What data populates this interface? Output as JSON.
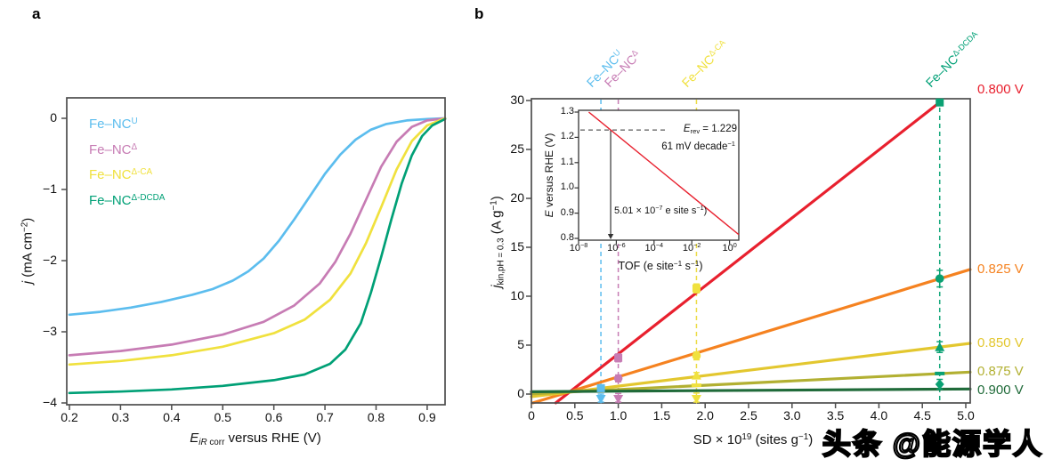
{
  "panel_a": {
    "label": "a",
    "ylabel_html": "<i>j</i> (mA cm<sup>−2</sup>)",
    "xlabel_html": "<i>E</i><sub><i>iR</i> corr</sub> versus RHE (V)",
    "legend": [
      {
        "label_html": "Fe–NC<sup>U</sup>",
        "color": "#5cbdee"
      },
      {
        "label_html": "Fe–NC<sup>Δ</sup>",
        "color": "#c77cb4"
      },
      {
        "label_html": "Fe–NC<sup>Δ-CA</sup>",
        "color": "#f0e13e"
      },
      {
        "label_html": "Fe–NC<sup>Δ-DCDA</sup>",
        "color": "#00a076"
      }
    ]
  },
  "panel_b": {
    "label": "b",
    "ylabel_html": "<i>j</i><sub>kin,pH = 0.3</sub> (A g<sup>−1</sup>)",
    "xlabel_html": "SD × 10<sup>19</sup> (sites g<sup>−1</sup>)",
    "catalyst_labels": [
      {
        "label_html": "Fe–NC<sup>U</sup>",
        "color": "#5cbdee",
        "sd": 0.8
      },
      {
        "label_html": "Fe–NC<sup>Δ</sup>",
        "color": "#c77cb4",
        "sd": 1.0
      },
      {
        "label_html": "Fe–NC<sup>Δ-CA</sup>",
        "color": "#f0e13e",
        "sd": 1.9
      },
      {
        "label_html": "Fe–NC<sup>Δ-DCDA</sup>",
        "color": "#00a076",
        "sd": 4.7
      }
    ],
    "potential_labels": [
      {
        "text": "0.800 V",
        "color": "#e8202e"
      },
      {
        "text": "0.825 V",
        "color": "#f58220"
      },
      {
        "text": "0.850 V",
        "color": "#e3c72f"
      },
      {
        "text": "0.875 V",
        "color": "#b2b032"
      },
      {
        "text": "0.900 V",
        "color": "#206b3a"
      }
    ],
    "inset": {
      "ylabel_html": "<i>E</i> versus RHE (V)",
      "xlabel_html": "TOF (e site<sup>−1</sup> s<sup>−1</sup>)",
      "erev_html": "<i>E</i><sub>rev</sub> = 1.229",
      "slope_html": "61 mV decade<sup>−1</sup>",
      "tof_html": "5.01 × 10<sup>−7</sup> e site s<sup>−1</sup>)"
    }
  },
  "watermark": "头条 @能源学人",
  "chart_data": [
    {
      "type": "line",
      "panel": "a",
      "xlabel": "E_iR corr versus RHE (V)",
      "ylabel": "j (mA cm−2)",
      "xlim": [
        0.195,
        0.935
      ],
      "ylim": [
        -4.03,
        0.29
      ],
      "xticks": [
        0.2,
        0.3,
        0.4,
        0.5,
        0.6,
        0.7,
        0.8,
        0.9
      ],
      "xtick_labels": [
        "0.2",
        "0.3",
        "0.4",
        "0.5",
        "0.6",
        "0.7",
        "0.8",
        "0.9"
      ],
      "yticks": [
        0,
        -1,
        -2,
        -3,
        -4
      ],
      "ytick_labels": [
        "0",
        "−1",
        "−2",
        "−3",
        "−4"
      ],
      "series": [
        {
          "name": "Fe–NC U",
          "color": "#5cbdee",
          "points": [
            [
              0.2,
              -2.76
            ],
            [
              0.26,
              -2.72
            ],
            [
              0.32,
              -2.66
            ],
            [
              0.38,
              -2.58
            ],
            [
              0.44,
              -2.48
            ],
            [
              0.48,
              -2.4
            ],
            [
              0.52,
              -2.28
            ],
            [
              0.55,
              -2.15
            ],
            [
              0.58,
              -1.97
            ],
            [
              0.61,
              -1.72
            ],
            [
              0.64,
              -1.42
            ],
            [
              0.67,
              -1.1
            ],
            [
              0.7,
              -0.78
            ],
            [
              0.73,
              -0.51
            ],
            [
              0.76,
              -0.3
            ],
            [
              0.79,
              -0.16
            ],
            [
              0.82,
              -0.08
            ],
            [
              0.86,
              -0.03
            ],
            [
              0.9,
              -0.01
            ],
            [
              0.935,
              0
            ]
          ]
        },
        {
          "name": "Fe–NC Δ",
          "color": "#c77cb4",
          "points": [
            [
              0.2,
              -3.33
            ],
            [
              0.3,
              -3.27
            ],
            [
              0.4,
              -3.18
            ],
            [
              0.5,
              -3.04
            ],
            [
              0.58,
              -2.86
            ],
            [
              0.64,
              -2.63
            ],
            [
              0.69,
              -2.32
            ],
            [
              0.72,
              -2.02
            ],
            [
              0.75,
              -1.62
            ],
            [
              0.78,
              -1.15
            ],
            [
              0.81,
              -0.68
            ],
            [
              0.84,
              -0.33
            ],
            [
              0.87,
              -0.12
            ],
            [
              0.9,
              -0.03
            ],
            [
              0.935,
              0
            ]
          ]
        },
        {
          "name": "Fe–NC Δ-CA",
          "color": "#f0e13e",
          "points": [
            [
              0.2,
              -3.46
            ],
            [
              0.3,
              -3.41
            ],
            [
              0.4,
              -3.33
            ],
            [
              0.5,
              -3.21
            ],
            [
              0.6,
              -3.02
            ],
            [
              0.66,
              -2.83
            ],
            [
              0.71,
              -2.55
            ],
            [
              0.75,
              -2.18
            ],
            [
              0.78,
              -1.76
            ],
            [
              0.81,
              -1.25
            ],
            [
              0.84,
              -0.72
            ],
            [
              0.87,
              -0.32
            ],
            [
              0.9,
              -0.1
            ],
            [
              0.935,
              0
            ]
          ]
        },
        {
          "name": "Fe–NC Δ-DCDA",
          "color": "#00a076",
          "points": [
            [
              0.2,
              -3.86
            ],
            [
              0.3,
              -3.84
            ],
            [
              0.4,
              -3.81
            ],
            [
              0.5,
              -3.76
            ],
            [
              0.6,
              -3.68
            ],
            [
              0.66,
              -3.6
            ],
            [
              0.71,
              -3.45
            ],
            [
              0.74,
              -3.25
            ],
            [
              0.77,
              -2.88
            ],
            [
              0.79,
              -2.45
            ],
            [
              0.81,
              -1.95
            ],
            [
              0.83,
              -1.42
            ],
            [
              0.85,
              -0.92
            ],
            [
              0.87,
              -0.52
            ],
            [
              0.89,
              -0.25
            ],
            [
              0.91,
              -0.1
            ],
            [
              0.935,
              -0.01
            ]
          ]
        }
      ]
    },
    {
      "type": "scatter",
      "panel": "b",
      "xlabel": "SD × 10^19 (sites g−1)",
      "ylabel": "j_kin,pH=0.3 (A g−1)",
      "xlim": [
        0,
        5.05
      ],
      "ylim": [
        -0.9,
        30.2
      ],
      "xticks": [
        0,
        0.5,
        1.0,
        1.5,
        2.0,
        2.5,
        3.0,
        3.5,
        4.0,
        4.5,
        5.0
      ],
      "xtick_labels": [
        "0",
        "0.5",
        "1.0",
        "1.5",
        "2.0",
        "2.5",
        "3.0",
        "3.5",
        "4.0",
        "4.5",
        "5.0"
      ],
      "yticks": [
        0,
        5,
        10,
        15,
        20,
        25,
        30
      ],
      "ytick_labels": [
        "0",
        "5",
        "10",
        "15",
        "20",
        "25",
        "30"
      ],
      "lines": [
        {
          "potential": "0.800 V",
          "color": "#e8202e",
          "slope": 6.95,
          "intercept": -2.85,
          "x_end": 4.7,
          "width": 3.2
        },
        {
          "potential": "0.825 V",
          "color": "#f58220",
          "slope": 2.71,
          "intercept": -0.95,
          "x_end": 5.05,
          "width": 3.2
        },
        {
          "potential": "0.850 V",
          "color": "#e3c72f",
          "slope": 1.08,
          "intercept": -0.27,
          "x_end": 5.05,
          "width": 3.2
        },
        {
          "potential": "0.875 V",
          "color": "#b2b032",
          "slope": 0.44,
          "intercept": 0.02,
          "x_end": 5.05,
          "width": 3.2
        },
        {
          "potential": "0.900 V",
          "color": "#206b3a",
          "slope": 0.055,
          "intercept": 0.24,
          "x_end": 5.05,
          "width": 3.2
        }
      ],
      "guides": [
        {
          "catalyst": "Fe–NC U",
          "color": "#5cbdee",
          "sd": 0.8
        },
        {
          "catalyst": "Fe–NC Δ",
          "color": "#c77cb4",
          "sd": 1.0
        },
        {
          "catalyst": "Fe–NC Δ-CA",
          "color": "#ecdc45",
          "sd": 1.9
        },
        {
          "catalyst": "Fe–NC Δ-DCDA",
          "color": "#17a97c",
          "sd": 4.7
        }
      ],
      "markers": [
        {
          "catalyst": "Fe–NC U",
          "color": "#5cbdee",
          "sd": 0.8,
          "shape": "square",
          "value": 0.6,
          "err": 0.3
        },
        {
          "catalyst": "Fe–NC U",
          "color": "#5cbdee",
          "sd": 0.8,
          "shape": "triangle-down",
          "value": -0.5,
          "err": 0.5
        },
        {
          "catalyst": "Fe–NC Δ",
          "color": "#c77cb4",
          "sd": 1.0,
          "shape": "square",
          "value": 3.7,
          "err": 0.4
        },
        {
          "catalyst": "Fe–NC Δ",
          "color": "#c77cb4",
          "sd": 1.0,
          "shape": "circle",
          "value": 1.6,
          "err": 0.35
        },
        {
          "catalyst": "Fe–NC Δ",
          "color": "#c77cb4",
          "sd": 1.0,
          "shape": "triangle-down",
          "value": -0.5,
          "err": 0.55
        },
        {
          "catalyst": "Fe–NC Δ-CA",
          "color": "#f0e13e",
          "sd": 1.9,
          "shape": "square",
          "value": 10.8,
          "err": 0.45
        },
        {
          "catalyst": "Fe–NC Δ-CA",
          "color": "#f0e13e",
          "sd": 1.9,
          "shape": "circle",
          "value": 3.9,
          "err": 0.4
        },
        {
          "catalyst": "Fe–NC Δ-CA",
          "color": "#f0e13e",
          "sd": 1.9,
          "shape": "triangle-up",
          "value": 1.9,
          "err": 0.3
        },
        {
          "catalyst": "Fe–NC Δ-CA",
          "color": "#f0e13e",
          "sd": 1.9,
          "shape": "bar",
          "value": 0.9,
          "err": 0
        },
        {
          "catalyst": "Fe–NC Δ-CA",
          "color": "#f0e13e",
          "sd": 1.9,
          "shape": "triangle-down",
          "value": -0.5,
          "err": 0.6
        },
        {
          "catalyst": "Fe–NC Δ-DCDA",
          "color": "#0aa173",
          "sd": 4.7,
          "shape": "square",
          "value": 29.8,
          "err": 0.3
        },
        {
          "catalyst": "Fe–NC Δ-DCDA",
          "color": "#0aa173",
          "sd": 4.7,
          "shape": "circle",
          "value": 11.8,
          "err": 0.85
        },
        {
          "catalyst": "Fe–NC Δ-DCDA",
          "color": "#0aa173",
          "sd": 4.7,
          "shape": "triangle-up",
          "value": 4.8,
          "err": 0.55
        },
        {
          "catalyst": "Fe–NC Δ-DCDA",
          "color": "#0aa173",
          "sd": 4.7,
          "shape": "bar",
          "value": 2.1,
          "err": 0
        },
        {
          "catalyst": "Fe–NC Δ-DCDA",
          "color": "#0aa173",
          "sd": 4.7,
          "shape": "diamond",
          "value": 1.0,
          "err": 0.5
        }
      ]
    },
    {
      "type": "line",
      "panel": "b-inset",
      "xscale": "log",
      "xlabel": "TOF (e site−1 s−1)",
      "ylabel": "E versus RHE (V)",
      "xticks_log": [
        -8,
        -6,
        -4,
        -2,
        0
      ],
      "xtick_labels_html": [
        "10<sup>−8</sup>",
        "10<sup>−6</sup>",
        "10<sup>−4</sup>",
        "10<sup>−2</sup>",
        "10<sup>0</sup>"
      ],
      "yticks": [
        0.8,
        0.9,
        1.0,
        1.1,
        1.2,
        1.3
      ],
      "ytick_labels": [
        "0.8",
        "0.9",
        "1.0",
        "1.1",
        "1.2",
        "1.3"
      ],
      "e_rev": 1.229,
      "tafel_slope_mV_per_decade": 61,
      "tof_at_e_rev": 5.01e-07,
      "tof_at_e_rev_log": -6.3,
      "line": {
        "color": "#e8202e",
        "points_logx_E": [
          [
            -7.46,
            1.3
          ],
          [
            0.49,
            0.815
          ]
        ]
      }
    }
  ]
}
